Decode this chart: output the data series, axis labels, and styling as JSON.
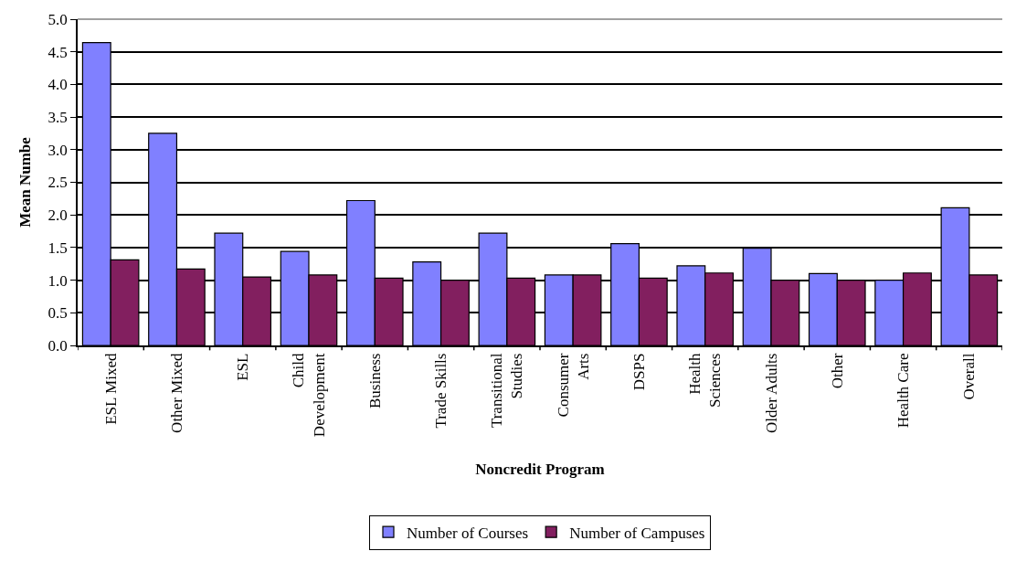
{
  "chart_data": {
    "type": "bar",
    "xlabel": "Noncredit Program",
    "ylabel": "Mean Numbe",
    "categories": [
      "ESL Mixed",
      "Other Mixed",
      "ESL",
      "Child\nDevelopment",
      "Business",
      "Trade Skills",
      "Transitional\nStudies",
      "Consumer\nArts",
      "DSPS",
      "Health\nSciences",
      "Older Adults",
      "Other",
      "Health Care",
      "Overall"
    ],
    "series": [
      {
        "name": "Number of Courses",
        "color": "#8080ff",
        "values": [
          4.64,
          3.25,
          1.72,
          1.44,
          2.22,
          1.28,
          1.72,
          1.08,
          1.56,
          1.22,
          1.49,
          1.1,
          1.0,
          2.11
        ]
      },
      {
        "name": "Number of Campuses",
        "color": "#821f5f",
        "values": [
          1.31,
          1.17,
          1.05,
          1.08,
          1.03,
          1.0,
          1.03,
          1.08,
          1.03,
          1.11,
          1.0,
          1.0,
          1.11,
          1.08
        ]
      }
    ],
    "ylim": [
      0,
      5
    ],
    "yticks": [
      {
        "value": 0,
        "label": "0.0"
      },
      {
        "value": 0.5,
        "label": "0.5"
      },
      {
        "value": 1,
        "label": "1.0"
      },
      {
        "value": 1.5,
        "label": "1.5"
      },
      {
        "value": 2,
        "label": "2.0"
      },
      {
        "value": 2.5,
        "label": "2.5"
      },
      {
        "value": 3,
        "label": "3.0"
      },
      {
        "value": 3.5,
        "label": "3.5"
      },
      {
        "value": 4,
        "label": "4.0"
      },
      {
        "value": 4.5,
        "label": "4.5"
      },
      {
        "value": 5,
        "label": "5.0"
      }
    ],
    "grid": "y",
    "legend": "bottom"
  }
}
